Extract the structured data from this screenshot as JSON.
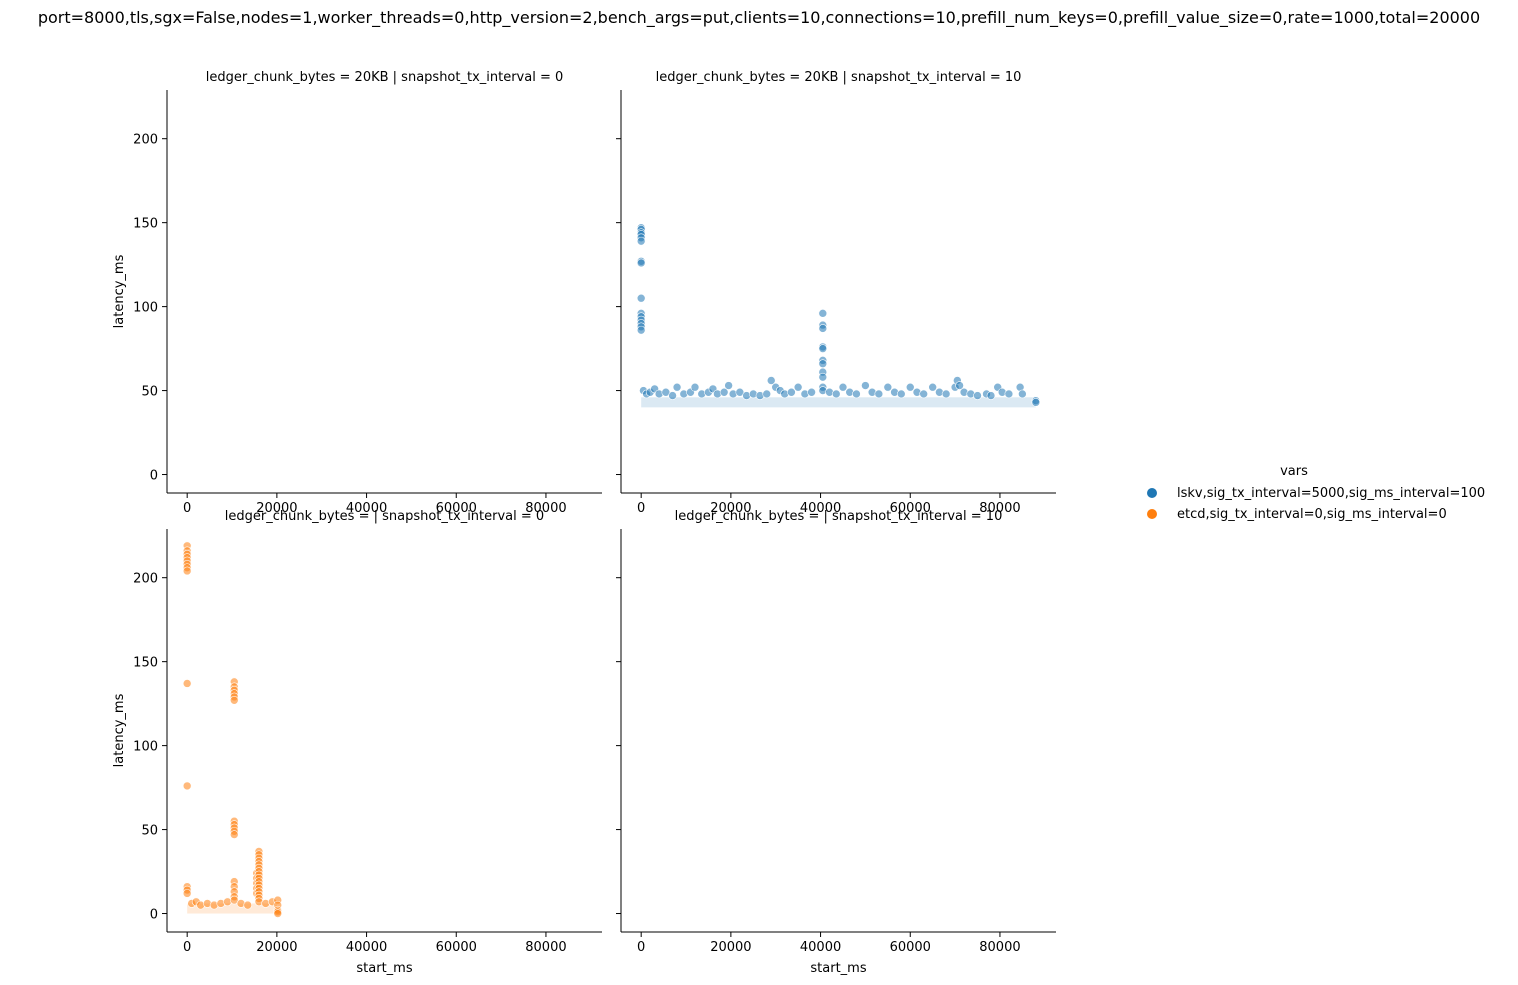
{
  "chart_data": {
    "type": "scatter",
    "title": "port=8000,tls,sgx=False,nodes=1,worker_threads=0,http_version=2,bench_args=put,clients=10,connections=10,prefill_num_keys=0,prefill_value_size=0,rate=1000,total=20000",
    "xlabel": "start_ms",
    "ylabel": "latency_ms",
    "xlim": [
      -4500,
      92500
    ],
    "ylim": [
      -11,
      229
    ],
    "xticks": [
      0,
      20000,
      40000,
      60000,
      80000
    ],
    "yticks": [
      0,
      50,
      100,
      150,
      200
    ],
    "legend": {
      "title": "vars",
      "placement": "right",
      "entries": [
        {
          "label": "lskv,sig_tx_interval=5000,sig_ms_interval=100",
          "color": "#1f77b4"
        },
        {
          "label": "etcd,sig_tx_interval=0,sig_ms_interval=0",
          "color": "#ff7f0e"
        }
      ]
    },
    "panels": [
      {
        "title": "ledger_chunk_bytes = 20KB | snapshot_tx_interval = 0",
        "row": 0,
        "col": 0,
        "series": []
      },
      {
        "title": "ledger_chunk_bytes = 20KB | snapshot_tx_interval = 10",
        "row": 0,
        "col": 1,
        "series": [
          {
            "color": "#1f77b4",
            "points": [
              [
                0,
                147
              ],
              [
                0,
                146
              ],
              [
                0,
                144
              ],
              [
                0,
                143
              ],
              [
                0,
                141
              ],
              [
                0,
                139
              ],
              [
                0,
                127
              ],
              [
                0,
                126
              ],
              [
                0,
                105
              ],
              [
                0,
                96
              ],
              [
                0,
                94
              ],
              [
                0,
                92
              ],
              [
                0,
                90
              ],
              [
                0,
                88
              ],
              [
                0,
                86
              ],
              [
                500,
                50
              ],
              [
                1200,
                48
              ],
              [
                2000,
                49
              ],
              [
                3000,
                51
              ],
              [
                4000,
                48
              ],
              [
                5500,
                49
              ],
              [
                7000,
                47
              ],
              [
                8000,
                52
              ],
              [
                9500,
                48
              ],
              [
                11000,
                49
              ],
              [
                12000,
                52
              ],
              [
                13500,
                48
              ],
              [
                15000,
                49
              ],
              [
                16000,
                51
              ],
              [
                17000,
                48
              ],
              [
                18500,
                49
              ],
              [
                19500,
                53
              ],
              [
                20500,
                48
              ],
              [
                22000,
                49
              ],
              [
                23500,
                47
              ],
              [
                25000,
                48
              ],
              [
                26500,
                47
              ],
              [
                28000,
                48
              ],
              [
                29000,
                56
              ],
              [
                30000,
                52
              ],
              [
                31000,
                50
              ],
              [
                32000,
                48
              ],
              [
                33500,
                49
              ],
              [
                35000,
                52
              ],
              [
                36500,
                48
              ],
              [
                38000,
                49
              ],
              [
                40500,
                96
              ],
              [
                40500,
                89
              ],
              [
                40500,
                87
              ],
              [
                40500,
                76
              ],
              [
                40500,
                75
              ],
              [
                40500,
                68
              ],
              [
                40500,
                66
              ],
              [
                40500,
                61
              ],
              [
                40500,
                58
              ],
              [
                40500,
                52
              ],
              [
                40500,
                50
              ],
              [
                42000,
                49
              ],
              [
                43500,
                48
              ],
              [
                45000,
                52
              ],
              [
                46500,
                49
              ],
              [
                48000,
                48
              ],
              [
                50000,
                53
              ],
              [
                51500,
                49
              ],
              [
                53000,
                48
              ],
              [
                55000,
                52
              ],
              [
                56500,
                49
              ],
              [
                58000,
                48
              ],
              [
                60000,
                52
              ],
              [
                61500,
                49
              ],
              [
                63000,
                48
              ],
              [
                65000,
                52
              ],
              [
                66500,
                49
              ],
              [
                68000,
                48
              ],
              [
                70000,
                52
              ],
              [
                70500,
                56
              ],
              [
                71000,
                53
              ],
              [
                72000,
                49
              ],
              [
                73500,
                48
              ],
              [
                75000,
                47
              ],
              [
                77000,
                48
              ],
              [
                78000,
                47
              ],
              [
                79500,
                52
              ],
              [
                80500,
                49
              ],
              [
                82000,
                48
              ],
              [
                84500,
                52
              ],
              [
                85000,
                48
              ],
              [
                88000,
                44
              ],
              [
                88000,
                43
              ]
            ],
            "band": {
              "x": [
                0,
                88000
              ],
              "y": [
                40,
                46
              ]
            }
          }
        ]
      },
      {
        "title": "ledger_chunk_bytes =  | snapshot_tx_interval = 0",
        "row": 1,
        "col": 0,
        "series": [
          {
            "color": "#ff7f0e",
            "points": [
              [
                0,
                219
              ],
              [
                0,
                216
              ],
              [
                0,
                214
              ],
              [
                0,
                212
              ],
              [
                0,
                210
              ],
              [
                0,
                208
              ],
              [
                0,
                206
              ],
              [
                0,
                204
              ],
              [
                0,
                137
              ],
              [
                0,
                76
              ],
              [
                0,
                16
              ],
              [
                0,
                14
              ],
              [
                0,
                12
              ],
              [
                1000,
                6
              ],
              [
                2000,
                7
              ],
              [
                3000,
                5
              ],
              [
                4500,
                6
              ],
              [
                6000,
                5
              ],
              [
                7500,
                6
              ],
              [
                9000,
                7
              ],
              [
                10500,
                138
              ],
              [
                10500,
                135
              ],
              [
                10500,
                133
              ],
              [
                10500,
                131
              ],
              [
                10500,
                129
              ],
              [
                10500,
                127
              ],
              [
                10500,
                55
              ],
              [
                10500,
                53
              ],
              [
                10500,
                51
              ],
              [
                10500,
                49
              ],
              [
                10500,
                47
              ],
              [
                10500,
                19
              ],
              [
                10500,
                16
              ],
              [
                10500,
                13
              ],
              [
                10500,
                10
              ],
              [
                10500,
                8
              ],
              [
                12000,
                6
              ],
              [
                13500,
                5
              ],
              [
                15500,
                24
              ],
              [
                15500,
                21
              ],
              [
                15500,
                18
              ],
              [
                15500,
                15
              ],
              [
                15500,
                12
              ],
              [
                16000,
                37
              ],
              [
                16000,
                35
              ],
              [
                16000,
                33
              ],
              [
                16000,
                31
              ],
              [
                16000,
                29
              ],
              [
                16000,
                27
              ],
              [
                16000,
                25
              ],
              [
                16000,
                23
              ],
              [
                16000,
                21
              ],
              [
                16000,
                19
              ],
              [
                16000,
                17
              ],
              [
                16000,
                15
              ],
              [
                16000,
                13
              ],
              [
                16000,
                11
              ],
              [
                16000,
                9
              ],
              [
                16000,
                7
              ],
              [
                17500,
                6
              ],
              [
                19000,
                7
              ],
              [
                20200,
                8
              ],
              [
                20200,
                5
              ],
              [
                20200,
                2
              ],
              [
                20200,
                1
              ],
              [
                20200,
                0
              ]
            ],
            "band": {
              "x": [
                0,
                20000
              ],
              "y": [
                0,
                6
              ]
            }
          }
        ]
      },
      {
        "title": "ledger_chunk_bytes =  | snapshot_tx_interval = 10",
        "row": 1,
        "col": 1,
        "series": []
      }
    ]
  }
}
